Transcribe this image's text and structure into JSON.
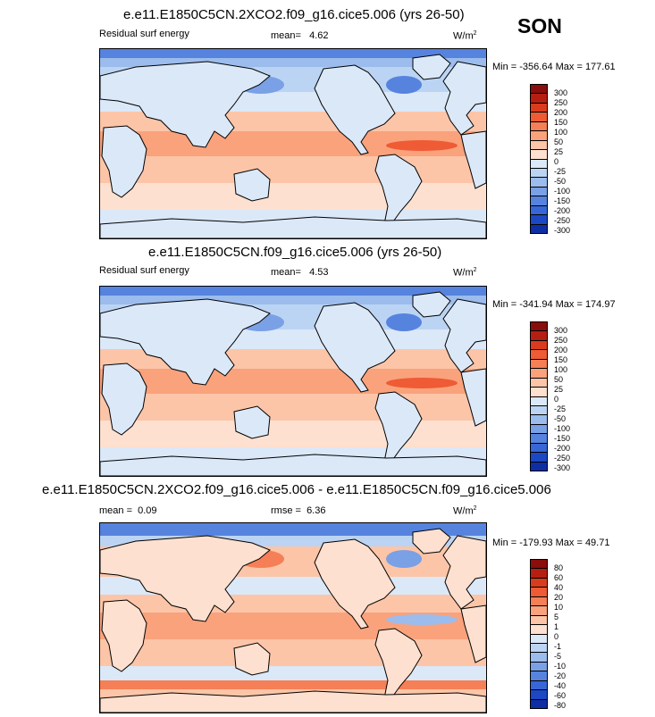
{
  "season": "SON",
  "colors": {
    "pos": [
      "#fde0cf",
      "#fcc5a8",
      "#f9a27c",
      "#f57f56",
      "#ee5b34",
      "#d93c1d",
      "#b51f12",
      "#8a0e0c"
    ],
    "neg": [
      "#dbe8f8",
      "#bcd4f3",
      "#9bbcec",
      "#7aa0e6",
      "#5683de",
      "#3866d6",
      "#1d48c4",
      "#0e2ea3",
      "#081c7a"
    ],
    "land": "#dbe8f8"
  },
  "panels": [
    {
      "title": "e.e11.E1850C5CN.2XCO2.f09_g16.cice5.006 (yrs 26-50)",
      "variable": "Residual surf energy",
      "stat_label": "mean=",
      "stat_value": "4.62",
      "units": "W/m",
      "units_exp": "2",
      "minmax": "Min = -356.64 Max = 177.61",
      "levels": [
        "300",
        "250",
        "200",
        "150",
        "100",
        "50",
        "25",
        "0",
        "-25",
        "-50",
        "-100",
        "-150",
        "-200",
        "-250",
        "-300"
      ]
    },
    {
      "title": "e.e11.E1850C5CN.f09_g16.cice5.006 (yrs 26-50)",
      "variable": "Residual surf energy",
      "stat_label": "mean=",
      "stat_value": "4.53",
      "units": "W/m",
      "units_exp": "2",
      "minmax": "Min = -341.94 Max = 174.97",
      "levels": [
        "300",
        "250",
        "200",
        "150",
        "100",
        "50",
        "25",
        "0",
        "-25",
        "-50",
        "-100",
        "-150",
        "-200",
        "-250",
        "-300"
      ]
    },
    {
      "title": "e.e11.E1850C5CN.2XCO2.f09_g16.cice5.006 - e.e11.E1850C5CN.f09_g16.cice5.006",
      "variable": "",
      "stat_label": "mean =",
      "stat_value": "0.09",
      "rmse_label": "rmse =",
      "rmse_value": "6.36",
      "units": "W/m",
      "units_exp": "2",
      "minmax": "Min = -179.93 Max = 49.71",
      "levels": [
        "80",
        "60",
        "40",
        "20",
        "10",
        "5",
        "1",
        "0",
        "-1",
        "-5",
        "-10",
        "-20",
        "-40",
        "-60",
        "-80"
      ]
    }
  ]
}
